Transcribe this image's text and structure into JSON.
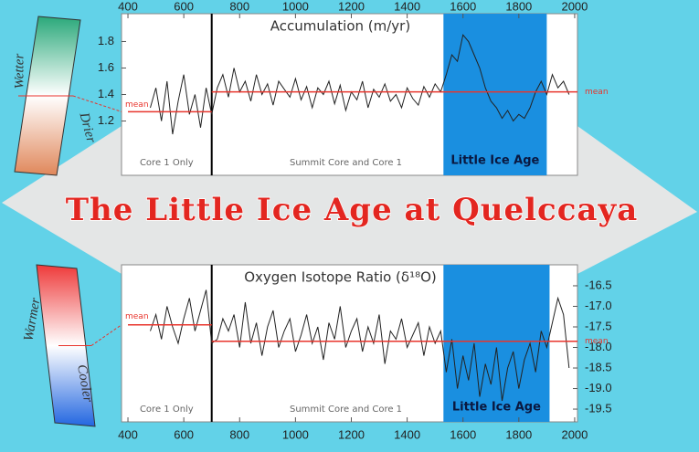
{
  "header": {
    "title": "The Little Ice Age at Quelccaya"
  },
  "chart_data": [
    {
      "type": "line",
      "title": "Accumulation (m/yr)",
      "x_axis_position": "top",
      "y_axis_position": "left",
      "xlim": [
        377,
        2010
      ],
      "xticks": [
        400,
        600,
        800,
        1000,
        1200,
        1400,
        1600,
        1800,
        2000
      ],
      "ylim": [
        0.79,
        2.01
      ],
      "yticks": [
        1.2,
        1.4,
        1.6,
        1.8
      ],
      "color": "#222222",
      "mean_color": "#e8342c",
      "x": [
        480,
        500,
        520,
        540,
        560,
        580,
        600,
        620,
        640,
        660,
        680,
        700,
        720,
        740,
        760,
        780,
        800,
        820,
        840,
        860,
        880,
        900,
        920,
        940,
        960,
        980,
        1000,
        1020,
        1040,
        1060,
        1080,
        1100,
        1120,
        1140,
        1160,
        1180,
        1200,
        1220,
        1240,
        1260,
        1280,
        1300,
        1320,
        1340,
        1360,
        1380,
        1400,
        1420,
        1440,
        1460,
        1480,
        1500,
        1520,
        1540,
        1560,
        1580,
        1600,
        1620,
        1640,
        1660,
        1680,
        1700,
        1720,
        1740,
        1760,
        1780,
        1800,
        1820,
        1840,
        1860,
        1880,
        1900,
        1920,
        1940,
        1960,
        1980
      ],
      "values": [
        1.3,
        1.45,
        1.2,
        1.5,
        1.1,
        1.35,
        1.55,
        1.25,
        1.4,
        1.15,
        1.45,
        1.25,
        1.45,
        1.55,
        1.38,
        1.6,
        1.42,
        1.5,
        1.35,
        1.55,
        1.4,
        1.48,
        1.32,
        1.5,
        1.44,
        1.38,
        1.52,
        1.36,
        1.46,
        1.3,
        1.45,
        1.4,
        1.5,
        1.33,
        1.47,
        1.28,
        1.42,
        1.36,
        1.5,
        1.3,
        1.44,
        1.38,
        1.48,
        1.35,
        1.4,
        1.3,
        1.45,
        1.37,
        1.32,
        1.46,
        1.38,
        1.48,
        1.42,
        1.55,
        1.7,
        1.65,
        1.85,
        1.8,
        1.7,
        1.6,
        1.45,
        1.35,
        1.3,
        1.22,
        1.28,
        1.2,
        1.25,
        1.22,
        1.3,
        1.42,
        1.5,
        1.4,
        1.55,
        1.45,
        1.5,
        1.4
      ],
      "means": [
        {
          "label": "mean",
          "value": 1.27,
          "from": 400,
          "to": 700
        },
        {
          "label": "mean",
          "value": 1.42,
          "from": 700,
          "to": 2010
        }
      ],
      "divider": 700,
      "band": {
        "label": "Little Ice Age",
        "from": 1530,
        "to": 1900,
        "color": "#1a8fe0"
      },
      "regions": [
        "Core 1 Only",
        "Summit Core and Core 1"
      ],
      "scale": {
        "top_label": "Wetter",
        "bottom_label": "Drier",
        "top_color": "#2aa87a",
        "bottom_color": "#e0875a"
      }
    },
    {
      "type": "line",
      "title": "Oxygen Isotope Ratio (δ¹⁸O)",
      "x_axis_position": "bottom",
      "y_axis_position": "right",
      "xlim": [
        377,
        2010
      ],
      "xticks": [
        400,
        600,
        800,
        1000,
        1200,
        1400,
        1600,
        1800,
        2000
      ],
      "ylim": [
        -19.81,
        -15.99
      ],
      "yticks": [
        -16.5,
        {
          "value": -17,
          "label": "-17.0"
        },
        -17.5,
        {
          "value": -18,
          "label": "-18.0"
        },
        -18.5,
        {
          "value": -19,
          "label": "-19.0"
        },
        -19.5
      ],
      "color": "#222222",
      "mean_color": "#e8342c",
      "x": [
        480,
        500,
        520,
        540,
        560,
        580,
        600,
        620,
        640,
        660,
        680,
        700,
        720,
        740,
        760,
        780,
        800,
        820,
        840,
        860,
        880,
        900,
        920,
        940,
        960,
        980,
        1000,
        1020,
        1040,
        1060,
        1080,
        1100,
        1120,
        1140,
        1160,
        1180,
        1200,
        1220,
        1240,
        1260,
        1280,
        1300,
        1320,
        1340,
        1360,
        1380,
        1400,
        1420,
        1440,
        1460,
        1480,
        1500,
        1520,
        1540,
        1560,
        1580,
        1600,
        1620,
        1640,
        1660,
        1680,
        1700,
        1720,
        1740,
        1760,
        1780,
        1800,
        1820,
        1840,
        1860,
        1880,
        1900,
        1920,
        1940,
        1960,
        1980
      ],
      "values": [
        -17.6,
        -17.2,
        -17.8,
        -17.0,
        -17.5,
        -17.9,
        -17.3,
        -16.8,
        -17.6,
        -17.1,
        -16.6,
        -17.9,
        -17.8,
        -17.3,
        -17.6,
        -17.2,
        -18.0,
        -16.9,
        -17.9,
        -17.4,
        -18.2,
        -17.5,
        -17.1,
        -18.0,
        -17.6,
        -17.3,
        -18.1,
        -17.7,
        -17.2,
        -17.9,
        -17.5,
        -18.3,
        -17.4,
        -17.8,
        -17.0,
        -18.0,
        -17.6,
        -17.3,
        -18.1,
        -17.5,
        -17.9,
        -17.2,
        -18.4,
        -17.6,
        -17.8,
        -17.3,
        -18.0,
        -17.7,
        -17.4,
        -18.2,
        -17.5,
        -17.9,
        -17.6,
        -18.6,
        -17.8,
        -19.0,
        -18.2,
        -18.8,
        -17.9,
        -19.2,
        -18.4,
        -18.9,
        -18.0,
        -19.3,
        -18.5,
        -18.1,
        -19.0,
        -18.3,
        -17.9,
        -18.6,
        -17.6,
        -18.0,
        -17.4,
        -16.8,
        -17.2,
        -18.5
      ],
      "means": [
        {
          "label": "mean",
          "value": -17.45,
          "from": 400,
          "to": 700
        },
        {
          "label": "mean",
          "value": -17.85,
          "from": 700,
          "to": 2010
        }
      ],
      "divider": 700,
      "band": {
        "label": "Little Ice Age",
        "from": 1530,
        "to": 1910,
        "color": "#1a8fe0"
      },
      "regions": [
        "Core 1 Only",
        "Summit Core and Core 1"
      ],
      "scale": {
        "top_label": "Warmer",
        "bottom_label": "Cooler",
        "top_color": "#ee3a3a",
        "bottom_color": "#2266e0"
      }
    }
  ]
}
